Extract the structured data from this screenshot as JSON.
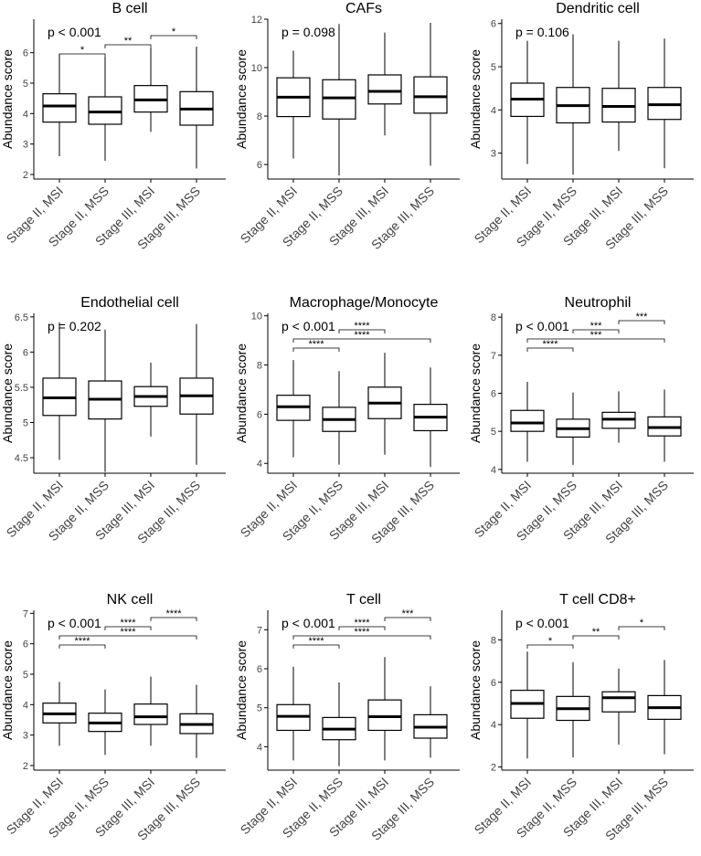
{
  "figure": {
    "ylabel": "Abundance score",
    "categories": [
      "Stage II, MSI",
      "Stage II, MSS",
      "Stage III, MSI",
      "Stage III, MSS"
    ]
  },
  "chart_data": [
    {
      "type": "boxplot",
      "title": "B cell",
      "pvalue": "p < 0.001",
      "ylim": [
        1.85,
        7.1
      ],
      "yticks": [
        2,
        3,
        4,
        5,
        6
      ],
      "boxes": [
        {
          "min": 2.6,
          "q1": 3.72,
          "median": 4.25,
          "q3": 4.65,
          "max": 5.95
        },
        {
          "min": 2.45,
          "q1": 3.65,
          "median": 4.05,
          "q3": 4.55,
          "max": 5.85
        },
        {
          "min": 3.4,
          "q1": 4.05,
          "median": 4.45,
          "q3": 4.92,
          "max": 6.15
        },
        {
          "min": 2.2,
          "q1": 3.62,
          "median": 4.15,
          "q3": 4.72,
          "max": 6.2
        }
      ],
      "brackets": [
        {
          "from": 0,
          "to": 1,
          "label": "*",
          "level": 0
        },
        {
          "from": 1,
          "to": 2,
          "label": "**",
          "level": 1
        },
        {
          "from": 2,
          "to": 3,
          "label": "*",
          "level": 2
        }
      ]
    },
    {
      "type": "boxplot",
      "title": "CAFs",
      "pvalue": "p = 0.098",
      "ylim": [
        5.4,
        12.0
      ],
      "yticks": [
        6,
        8,
        10,
        12
      ],
      "boxes": [
        {
          "min": 6.25,
          "q1": 7.98,
          "median": 8.78,
          "q3": 9.58,
          "max": 10.7
        },
        {
          "min": 5.55,
          "q1": 7.88,
          "median": 8.75,
          "q3": 9.5,
          "max": 11.8
        },
        {
          "min": 7.2,
          "q1": 8.5,
          "median": 9.02,
          "q3": 9.7,
          "max": 11.45
        },
        {
          "min": 5.95,
          "q1": 8.12,
          "median": 8.8,
          "q3": 9.62,
          "max": 11.85
        }
      ],
      "brackets": []
    },
    {
      "type": "boxplot",
      "title": "Dendritic cell",
      "pvalue": "p = 0.106",
      "ylim": [
        2.4,
        6.1
      ],
      "yticks": [
        3,
        4,
        5,
        6
      ],
      "boxes": [
        {
          "min": 2.75,
          "q1": 3.85,
          "median": 4.25,
          "q3": 4.62,
          "max": 5.6
        },
        {
          "min": 2.5,
          "q1": 3.7,
          "median": 4.1,
          "q3": 4.52,
          "max": 5.75
        },
        {
          "min": 3.05,
          "q1": 3.72,
          "median": 4.08,
          "q3": 4.5,
          "max": 5.6
        },
        {
          "min": 2.65,
          "q1": 3.78,
          "median": 4.12,
          "q3": 4.52,
          "max": 5.65
        }
      ],
      "brackets": []
    },
    {
      "type": "boxplot",
      "title": "Endothelial cell",
      "pvalue": "p = 0.202",
      "ylim": [
        4.28,
        6.55
      ],
      "yticks": [
        4.5,
        5.0,
        5.5,
        6.0,
        6.5
      ],
      "boxes": [
        {
          "min": 4.47,
          "q1": 5.1,
          "median": 5.35,
          "q3": 5.63,
          "max": 6.42
        },
        {
          "min": 4.3,
          "q1": 5.05,
          "median": 5.33,
          "q3": 5.59,
          "max": 6.32
        },
        {
          "min": 4.8,
          "q1": 5.23,
          "median": 5.37,
          "q3": 5.51,
          "max": 5.85
        },
        {
          "min": 4.4,
          "q1": 5.12,
          "median": 5.38,
          "q3": 5.63,
          "max": 6.4
        }
      ],
      "brackets": []
    },
    {
      "type": "boxplot",
      "title": "Macrophage/Monocyte",
      "pvalue": "p < 0.001",
      "ylim": [
        3.6,
        10.1
      ],
      "yticks": [
        4,
        6,
        8,
        10
      ],
      "boxes": [
        {
          "min": 4.25,
          "q1": 5.75,
          "median": 6.3,
          "q3": 6.77,
          "max": 8.2
        },
        {
          "min": 3.95,
          "q1": 5.3,
          "median": 5.78,
          "q3": 6.28,
          "max": 7.75
        },
        {
          "min": 4.35,
          "q1": 5.82,
          "median": 6.45,
          "q3": 7.1,
          "max": 8.5
        },
        {
          "min": 3.85,
          "q1": 5.33,
          "median": 5.88,
          "q3": 6.4,
          "max": 7.9
        }
      ],
      "brackets": [
        {
          "from": 0,
          "to": 1,
          "label": "****",
          "level": 0
        },
        {
          "from": 0,
          "to": 3,
          "label": "****",
          "level": 1
        },
        {
          "from": 1,
          "to": 2,
          "label": "****",
          "level": 2
        }
      ]
    },
    {
      "type": "boxplot",
      "title": "Neutrophil",
      "pvalue": "p < 0.001",
      "ylim": [
        3.9,
        8.1
      ],
      "yticks": [
        4,
        5,
        6,
        7,
        8
      ],
      "boxes": [
        {
          "min": 4.2,
          "q1": 5.0,
          "median": 5.22,
          "q3": 5.55,
          "max": 6.3
        },
        {
          "min": 4.12,
          "q1": 4.85,
          "median": 5.07,
          "q3": 5.32,
          "max": 6.02
        },
        {
          "min": 4.7,
          "q1": 5.08,
          "median": 5.32,
          "q3": 5.5,
          "max": 6.05
        },
        {
          "min": 4.2,
          "q1": 4.88,
          "median": 5.1,
          "q3": 5.38,
          "max": 6.1
        }
      ],
      "brackets": [
        {
          "from": 0,
          "to": 1,
          "label": "****",
          "level": 0
        },
        {
          "from": 0,
          "to": 3,
          "label": "***",
          "level": 1
        },
        {
          "from": 1,
          "to": 2,
          "label": "***",
          "level": 2
        },
        {
          "from": 2,
          "to": 3,
          "label": "***",
          "level": 3
        }
      ]
    },
    {
      "type": "boxplot",
      "title": "NK cell",
      "pvalue": "p < 0.001",
      "ylim": [
        1.85,
        7.1
      ],
      "yticks": [
        2,
        3,
        4,
        5,
        6,
        7
      ],
      "boxes": [
        {
          "min": 2.65,
          "q1": 3.4,
          "median": 3.7,
          "q3": 4.05,
          "max": 4.75
        },
        {
          "min": 2.35,
          "q1": 3.12,
          "median": 3.4,
          "q3": 3.72,
          "max": 4.5
        },
        {
          "min": 2.65,
          "q1": 3.35,
          "median": 3.6,
          "q3": 4.02,
          "max": 4.92
        },
        {
          "min": 2.25,
          "q1": 3.05,
          "median": 3.35,
          "q3": 3.7,
          "max": 4.65
        }
      ],
      "brackets": [
        {
          "from": 0,
          "to": 1,
          "label": "****",
          "level": 0
        },
        {
          "from": 0,
          "to": 3,
          "label": "****",
          "level": 1
        },
        {
          "from": 1,
          "to": 2,
          "label": "****",
          "level": 2
        },
        {
          "from": 2,
          "to": 3,
          "label": "****",
          "level": 3
        }
      ]
    },
    {
      "type": "boxplot",
      "title": "T cell",
      "pvalue": "p < 0.001",
      "ylim": [
        3.4,
        7.5
      ],
      "yticks": [
        4,
        5,
        6,
        7
      ],
      "boxes": [
        {
          "min": 3.65,
          "q1": 4.42,
          "median": 4.78,
          "q3": 5.08,
          "max": 6.05
        },
        {
          "min": 3.5,
          "q1": 4.18,
          "median": 4.45,
          "q3": 4.75,
          "max": 5.65
        },
        {
          "min": 3.65,
          "q1": 4.42,
          "median": 4.77,
          "q3": 5.2,
          "max": 6.3
        },
        {
          "min": 3.72,
          "q1": 4.22,
          "median": 4.5,
          "q3": 4.82,
          "max": 5.55
        }
      ],
      "brackets": [
        {
          "from": 0,
          "to": 1,
          "label": "****",
          "level": 0
        },
        {
          "from": 0,
          "to": 3,
          "label": "****",
          "level": 1
        },
        {
          "from": 1,
          "to": 2,
          "label": "****",
          "level": 2
        },
        {
          "from": 2,
          "to": 3,
          "label": "***",
          "level": 3
        }
      ]
    },
    {
      "type": "boxplot",
      "title": "T cell CD8+",
      "pvalue": "p < 0.001",
      "ylim": [
        1.85,
        9.4
      ],
      "yticks": [
        2,
        4,
        6,
        8
      ],
      "boxes": [
        {
          "min": 2.4,
          "q1": 4.3,
          "median": 5.0,
          "q3": 5.62,
          "max": 7.45
        },
        {
          "min": 2.45,
          "q1": 4.2,
          "median": 4.75,
          "q3": 5.33,
          "max": 6.95
        },
        {
          "min": 3.05,
          "q1": 4.6,
          "median": 5.27,
          "q3": 5.55,
          "max": 6.65
        },
        {
          "min": 2.6,
          "q1": 4.25,
          "median": 4.8,
          "q3": 5.37,
          "max": 7.05
        }
      ],
      "brackets": [
        {
          "from": 0,
          "to": 1,
          "label": "*",
          "level": 0
        },
        {
          "from": 1,
          "to": 2,
          "label": "**",
          "level": 1
        },
        {
          "from": 2,
          "to": 3,
          "label": "*",
          "level": 2
        }
      ]
    }
  ]
}
